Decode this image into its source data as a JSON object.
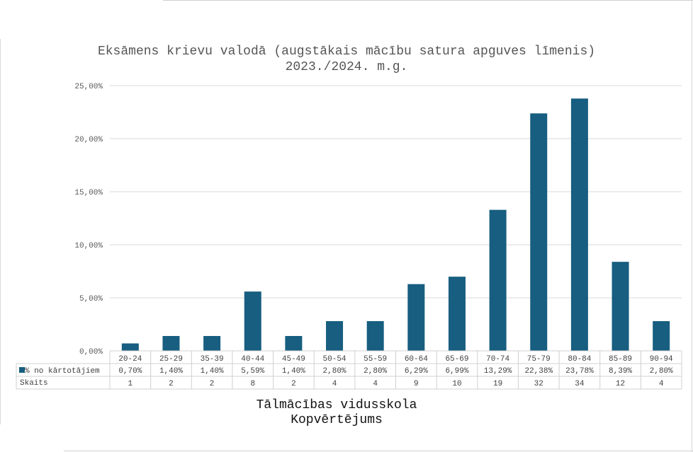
{
  "chart_data": {
    "type": "bar",
    "title": "Eksāmens krievu valodā (augstākais mācību satura apguves līmenis)\n2023./2024. m.g.",
    "categories": [
      "20-24",
      "25-29",
      "35-39",
      "40-44",
      "45-49",
      "50-54",
      "55-59",
      "60-64",
      "65-69",
      "70-74",
      "75-79",
      "80-84",
      "85-89",
      "90-94"
    ],
    "series": [
      {
        "name": "% no kārtotājiem",
        "values": [
          0.7,
          1.4,
          1.4,
          5.59,
          1.4,
          2.8,
          2.8,
          6.29,
          6.99,
          13.29,
          22.38,
          23.78,
          8.39,
          2.8
        ],
        "labels": [
          "0,70%",
          "1,40%",
          "1,40%",
          "5,59%",
          "1,40%",
          "2,80%",
          "2,80%",
          "6,29%",
          "6,99%",
          "13,29%",
          "22,38%",
          "23,78%",
          "8,39%",
          "2,80%"
        ],
        "color": "#175e80"
      }
    ],
    "table_rows": [
      {
        "name": "Skaits",
        "values": [
          "1",
          "2",
          "2",
          "8",
          "2",
          "4",
          "4",
          "9",
          "10",
          "19",
          "32",
          "34",
          "12",
          "4"
        ]
      }
    ],
    "y_ticks": [
      "0,00%",
      "5,00%",
      "10,00%",
      "15,00%",
      "20,00%",
      "25,00%"
    ],
    "ylim": [
      0,
      25
    ],
    "grid": true,
    "legend_position": "data-table"
  },
  "footer": {
    "line1": "Tālmācības vidusskola",
    "line2": "Kopvērtējums"
  }
}
